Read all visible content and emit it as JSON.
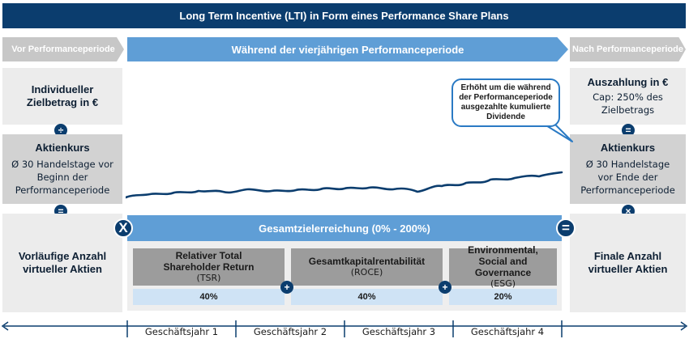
{
  "title": "Long Term Incentive (LTI) in Form eines Performance Share Plans",
  "phases": {
    "before": "Vor Performanceperiode",
    "during": "Während der vierjährigen Performanceperiode",
    "after": "Nach Performanceperiode"
  },
  "left": {
    "target": {
      "title": "Individueller Zielbetrag in €"
    },
    "divide_symbol": "÷",
    "share_price": {
      "title": "Aktienkurs",
      "text": "Ø 30 Handelstage vor Beginn der Performanceperiode"
    },
    "equals_symbol": "=",
    "result": {
      "title": "Vorläufige Anzahl virtueller Aktien"
    }
  },
  "right": {
    "payout": {
      "title": "Auszahlung in €",
      "text": "Cap: 250% des Zielbetrags"
    },
    "equals_symbol": "=",
    "share_price": {
      "title": "Aktienkurs",
      "text": "Ø 30 Handelstage vor Ende der Performanceperiode"
    },
    "times_symbol": "×",
    "result": {
      "title": "Finale Anzahl virtueller Aktien"
    }
  },
  "callout": "Erhöht um die während der Performanceperiode ausgezahlte kumulierte Dividende",
  "multiply_symbol": "X",
  "result_equals_symbol": "=",
  "plus_symbol": "+",
  "achievement": {
    "label": "Gesamtzielerreichung (0% - 200%)",
    "kpis": [
      {
        "name": "Relativer Total Shareholder Return",
        "abbr": "(TSR)",
        "weight": "40%"
      },
      {
        "name": "Gesamtkapitalrentabilität",
        "abbr": "(ROCE)",
        "weight": "40%"
      },
      {
        "name": "Environmental, Social and Governance",
        "abbr": "(ESG)",
        "weight": "20%"
      }
    ]
  },
  "years": [
    "Geschäftsjahr 1",
    "Geschäftsjahr 2",
    "Geschäftsjahr 3",
    "Geschäftsjahr 4"
  ],
  "colors": {
    "navy": "#0b3d6e",
    "blue": "#5f9ed6",
    "light_blue": "#cfe3f5",
    "gray": "#c7c7c7"
  }
}
